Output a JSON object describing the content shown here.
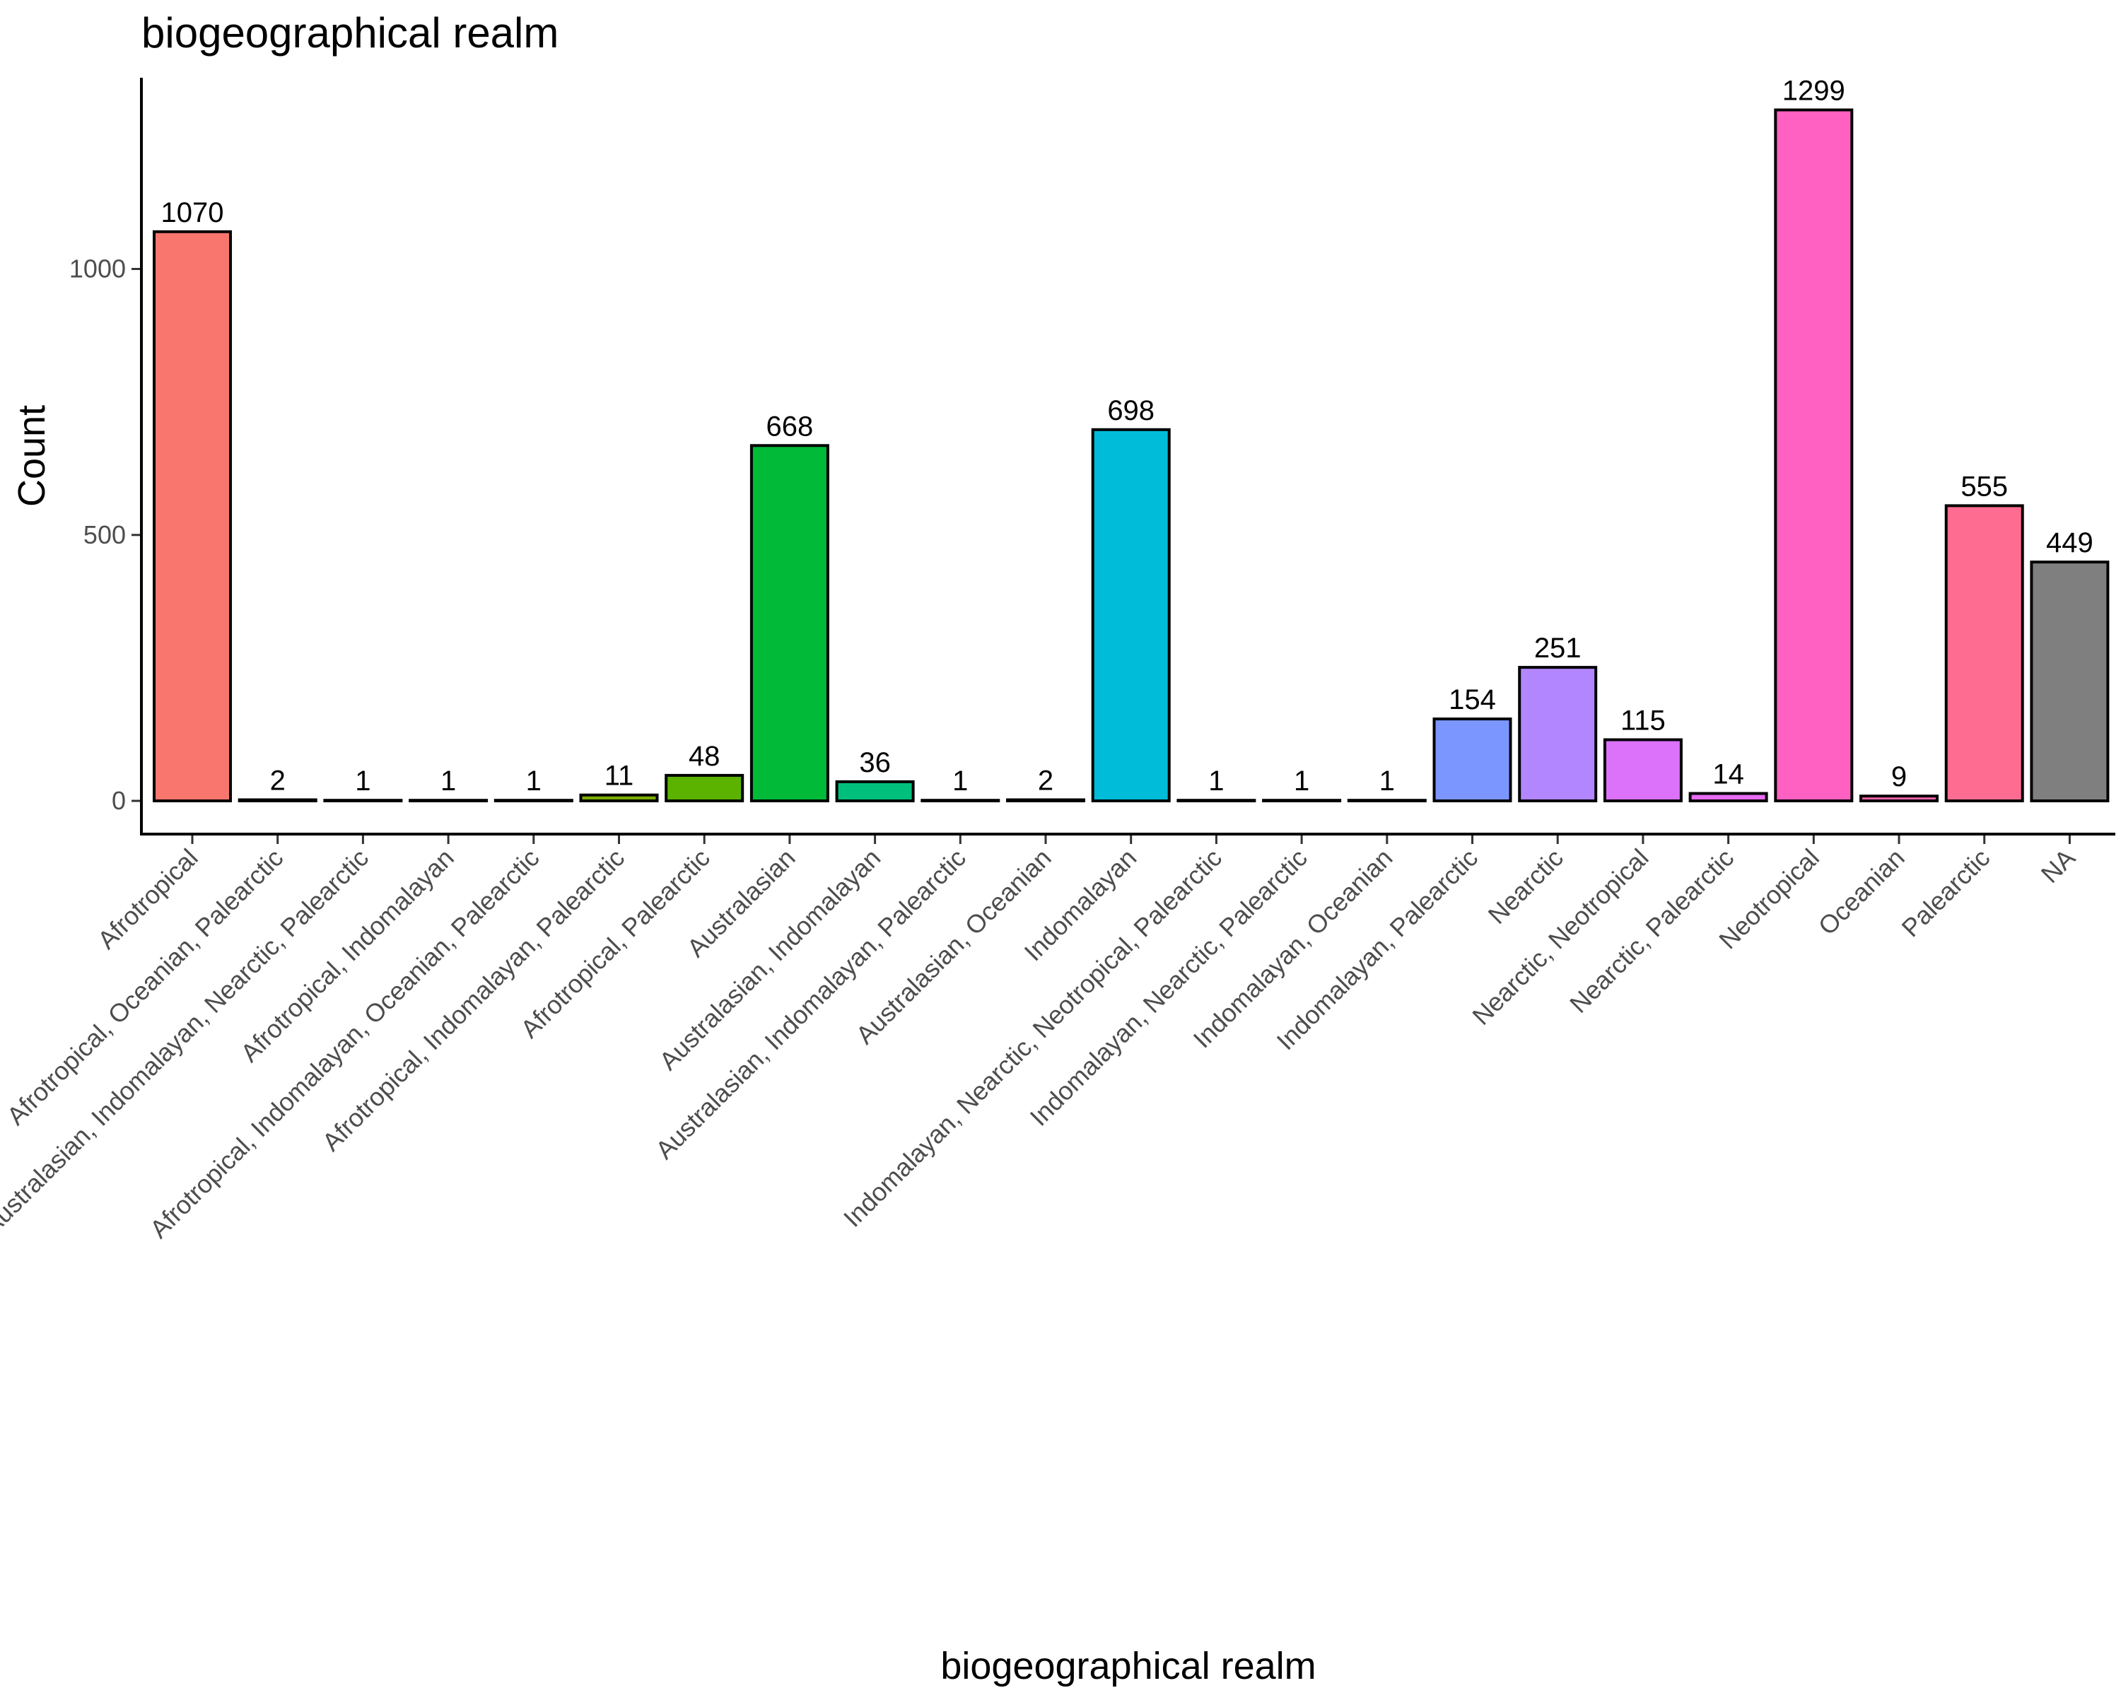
{
  "chart_data": {
    "type": "bar",
    "title": "biogeographical realm",
    "xlabel": "biogeographical realm",
    "ylabel": "Count",
    "ylim": [
      0,
      1300
    ],
    "yticks": [
      0,
      500,
      1000
    ],
    "grid": false,
    "legend": "none",
    "categories": [
      "Afrotropical",
      "Afrotropical, Oceanian, Palearctic",
      "Australasian, Indomalayan, Nearctic, Palearctic",
      "Afrotropical, Indomalayan",
      "Afrotropical, Indomalayan, Oceanian, Palearctic",
      "Afrotropical, Indomalayan, Palearctic",
      "Afrotropical, Palearctic",
      "Australasian",
      "Australasian, Indomalayan",
      "Australasian, Indomalayan, Palearctic",
      "Australasian, Oceanian",
      "Indomalayan",
      "Indomalayan, Nearctic, Neotropical, Palearctic",
      "Indomalayan, Nearctic, Palearctic",
      "Indomalayan, Oceanian",
      "Indomalayan, Palearctic",
      "Nearctic",
      "Nearctic, Neotropical",
      "Nearctic, Palearctic",
      "Neotropical",
      "Oceanian",
      "Palearctic",
      "NA"
    ],
    "values": [
      1070,
      2,
      1,
      1,
      1,
      11,
      48,
      668,
      36,
      1,
      2,
      698,
      1,
      1,
      1,
      154,
      251,
      115,
      14,
      1299,
      9,
      555,
      449
    ],
    "colors": [
      "#F8766D",
      "#EA8331",
      "#D89000",
      "#C09B00",
      "#A3A500",
      "#7CAE00",
      "#5BB300",
      "#00BA38",
      "#00BF7D",
      "#00C19F",
      "#00BFC4",
      "#00BCD8",
      "#00B6EB",
      "#06A4FF",
      "#35A2FF",
      "#7C96FF",
      "#B186FF",
      "#DC71FA",
      "#E76BF3",
      "#FF61C3",
      "#FF65AE",
      "#FF6C91",
      "#7F7F7F"
    ]
  }
}
